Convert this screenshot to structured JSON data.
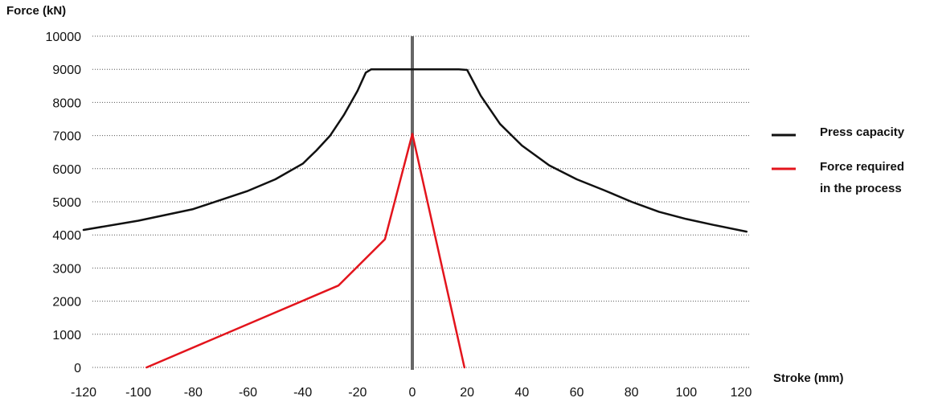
{
  "chart_data": {
    "type": "line",
    "ylabel": "Force (kN)",
    "xlabel": "Stroke (mm)",
    "xlim": [
      -120,
      125
    ],
    "ylim": [
      0,
      10000
    ],
    "x_ticks": [
      "-120",
      "-100",
      "-80",
      "-60",
      "-40",
      "-20",
      "0",
      "20",
      "40",
      "60",
      "80",
      "100",
      "120"
    ],
    "y_ticks": [
      "0",
      "1000",
      "2000",
      "3000",
      "4000",
      "5000",
      "6000",
      "7000",
      "8000",
      "9000",
      "10000"
    ],
    "grid": "horizontal dotted",
    "legend_position": "right",
    "zero_line_color": "#666666",
    "series": [
      {
        "name": "Press capacity",
        "color": "#111111",
        "points": [
          [
            -120,
            4150
          ],
          [
            -100,
            4430
          ],
          [
            -80,
            4780
          ],
          [
            -60,
            5330
          ],
          [
            -50,
            5680
          ],
          [
            -40,
            6150
          ],
          [
            -35,
            6550
          ],
          [
            -30,
            7000
          ],
          [
            -25,
            7620
          ],
          [
            -20,
            8350
          ],
          [
            -17,
            8900
          ],
          [
            -15,
            9000
          ],
          [
            0,
            9000
          ],
          [
            17,
            9000
          ],
          [
            20,
            8980
          ],
          [
            25,
            8200
          ],
          [
            32,
            7350
          ],
          [
            40,
            6700
          ],
          [
            50,
            6100
          ],
          [
            60,
            5680
          ],
          [
            70,
            5350
          ],
          [
            80,
            5000
          ],
          [
            90,
            4700
          ],
          [
            100,
            4480
          ],
          [
            110,
            4300
          ],
          [
            122,
            4100
          ]
        ]
      },
      {
        "name": "Force required in the process",
        "legend_lines": [
          "Force required",
          "in the process"
        ],
        "color": "#e3141c",
        "points": [
          [
            -97,
            0
          ],
          [
            -27,
            2470
          ],
          [
            -10,
            3870
          ],
          [
            0,
            7050
          ],
          [
            19,
            0
          ]
        ]
      }
    ]
  }
}
